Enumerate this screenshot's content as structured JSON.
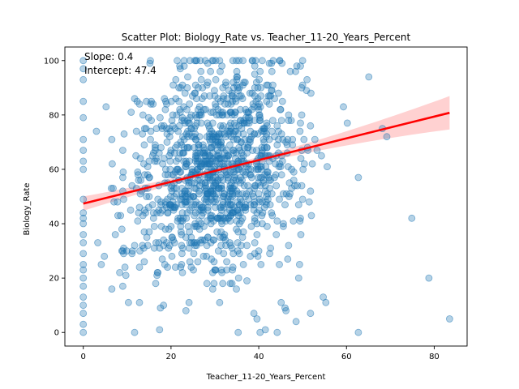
{
  "chart_data": {
    "type": "scatter",
    "title": "Scatter Plot: Biology_Rate vs. Teacher_11-20_Years_Percent",
    "xlabel": "Teacher_11-20_Years_Percent",
    "ylabel": "Biology_Rate",
    "xlim": [
      -4.2,
      87.5
    ],
    "ylim": [
      -5,
      105
    ],
    "xticks": [
      0,
      20,
      40,
      60,
      80
    ],
    "yticks": [
      0,
      20,
      40,
      60,
      80,
      100
    ],
    "grid": false,
    "annotations": [
      "Slope: 0.4",
      "Intercept: 47.4"
    ],
    "regression": {
      "slope": 0.4,
      "intercept": 47.4,
      "x_range": [
        0,
        83.5
      ]
    },
    "point_color": "#1f77b4",
    "line_color": "#ff0000",
    "band_color": "#ffb3b3",
    "series": [
      {
        "points": [
          [
            0,
            0
          ],
          [
            0,
            3
          ],
          [
            0,
            7
          ],
          [
            0,
            10
          ],
          [
            0,
            13
          ],
          [
            0,
            17
          ],
          [
            0,
            20
          ],
          [
            0,
            23
          ],
          [
            0,
            25
          ],
          [
            0,
            29
          ],
          [
            0,
            33
          ],
          [
            0,
            36
          ],
          [
            0,
            40
          ],
          [
            0,
            42
          ],
          [
            0,
            44
          ],
          [
            0,
            49
          ],
          [
            0,
            60
          ],
          [
            0,
            63
          ],
          [
            0,
            67
          ],
          [
            0,
            71
          ],
          [
            0,
            79
          ],
          [
            0,
            85
          ],
          [
            0,
            93
          ],
          [
            0,
            97
          ],
          [
            0,
            100
          ],
          [
            83.5,
            5
          ],
          [
            78.8,
            20
          ],
          [
            74.9,
            42
          ],
          [
            69.2,
            72
          ],
          [
            68.2,
            75
          ],
          [
            65.1,
            94
          ],
          [
            62.7,
            57
          ],
          [
            62.7,
            0
          ],
          [
            60.2,
            77
          ],
          [
            59.3,
            83
          ],
          [
            55.6,
            61
          ],
          [
            55.3,
            11
          ],
          [
            54.7,
            13
          ],
          [
            54.3,
            65
          ],
          [
            53.3,
            67
          ],
          [
            52.8,
            71
          ],
          [
            52.2,
            62
          ],
          [
            51.8,
            52
          ],
          [
            51.8,
            7
          ],
          [
            51.1,
            68
          ],
          [
            50.9,
            89
          ],
          [
            50.0,
            49
          ],
          [
            49.8,
            80
          ],
          [
            49.5,
            42
          ],
          [
            49.3,
            25
          ],
          [
            49.1,
            20
          ],
          [
            48.7,
            98
          ],
          [
            48.5,
            4
          ],
          [
            48.0,
            59
          ],
          [
            47.5,
            60
          ],
          [
            47.2,
            96
          ],
          [
            46.6,
            27
          ],
          [
            46.0,
            9
          ],
          [
            45.6,
            51
          ],
          [
            45.6,
            39
          ],
          [
            45.3,
            99
          ],
          [
            44.2,
            41
          ],
          [
            44.2,
            0
          ],
          [
            43.2,
            64
          ],
          [
            43.0,
            89
          ],
          [
            42.2,
            87
          ],
          [
            41.5,
            1
          ],
          [
            40.3,
            0
          ],
          [
            39.6,
            5
          ],
          [
            38.9,
            7
          ],
          [
            35.4,
            20
          ]
        ]
      }
    ]
  }
}
